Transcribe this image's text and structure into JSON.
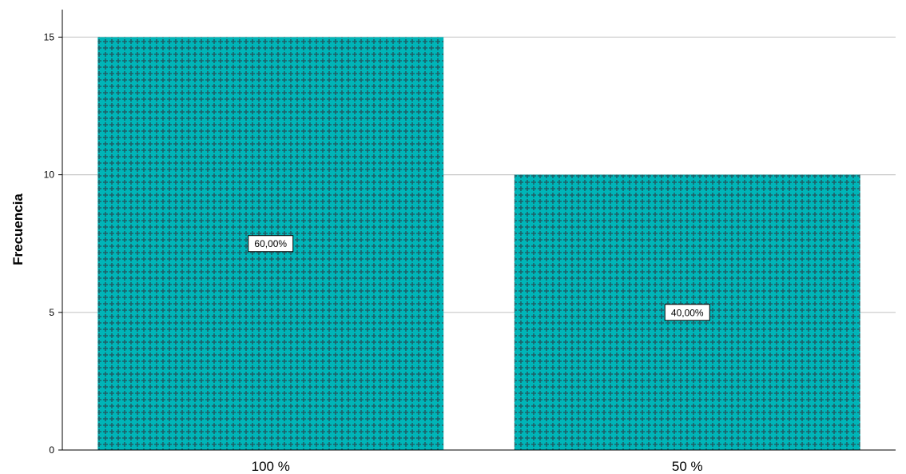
{
  "chart_data": {
    "type": "bar",
    "categories": [
      "100 %",
      "50 %"
    ],
    "values": [
      15,
      10
    ],
    "data_labels": [
      "60,00%",
      "40,00%"
    ],
    "title": "",
    "xlabel": "",
    "ylabel": "Frecuencia",
    "ylim": [
      0,
      16
    ],
    "yticks": [
      0,
      5,
      10,
      15
    ],
    "ytick_labels": [
      "0",
      "5",
      "10",
      "15"
    ],
    "grid": true,
    "bar_color": "#00b5b8",
    "bar_pattern_color": "#1f5f67",
    "grid_color": "#c8c8c8"
  }
}
